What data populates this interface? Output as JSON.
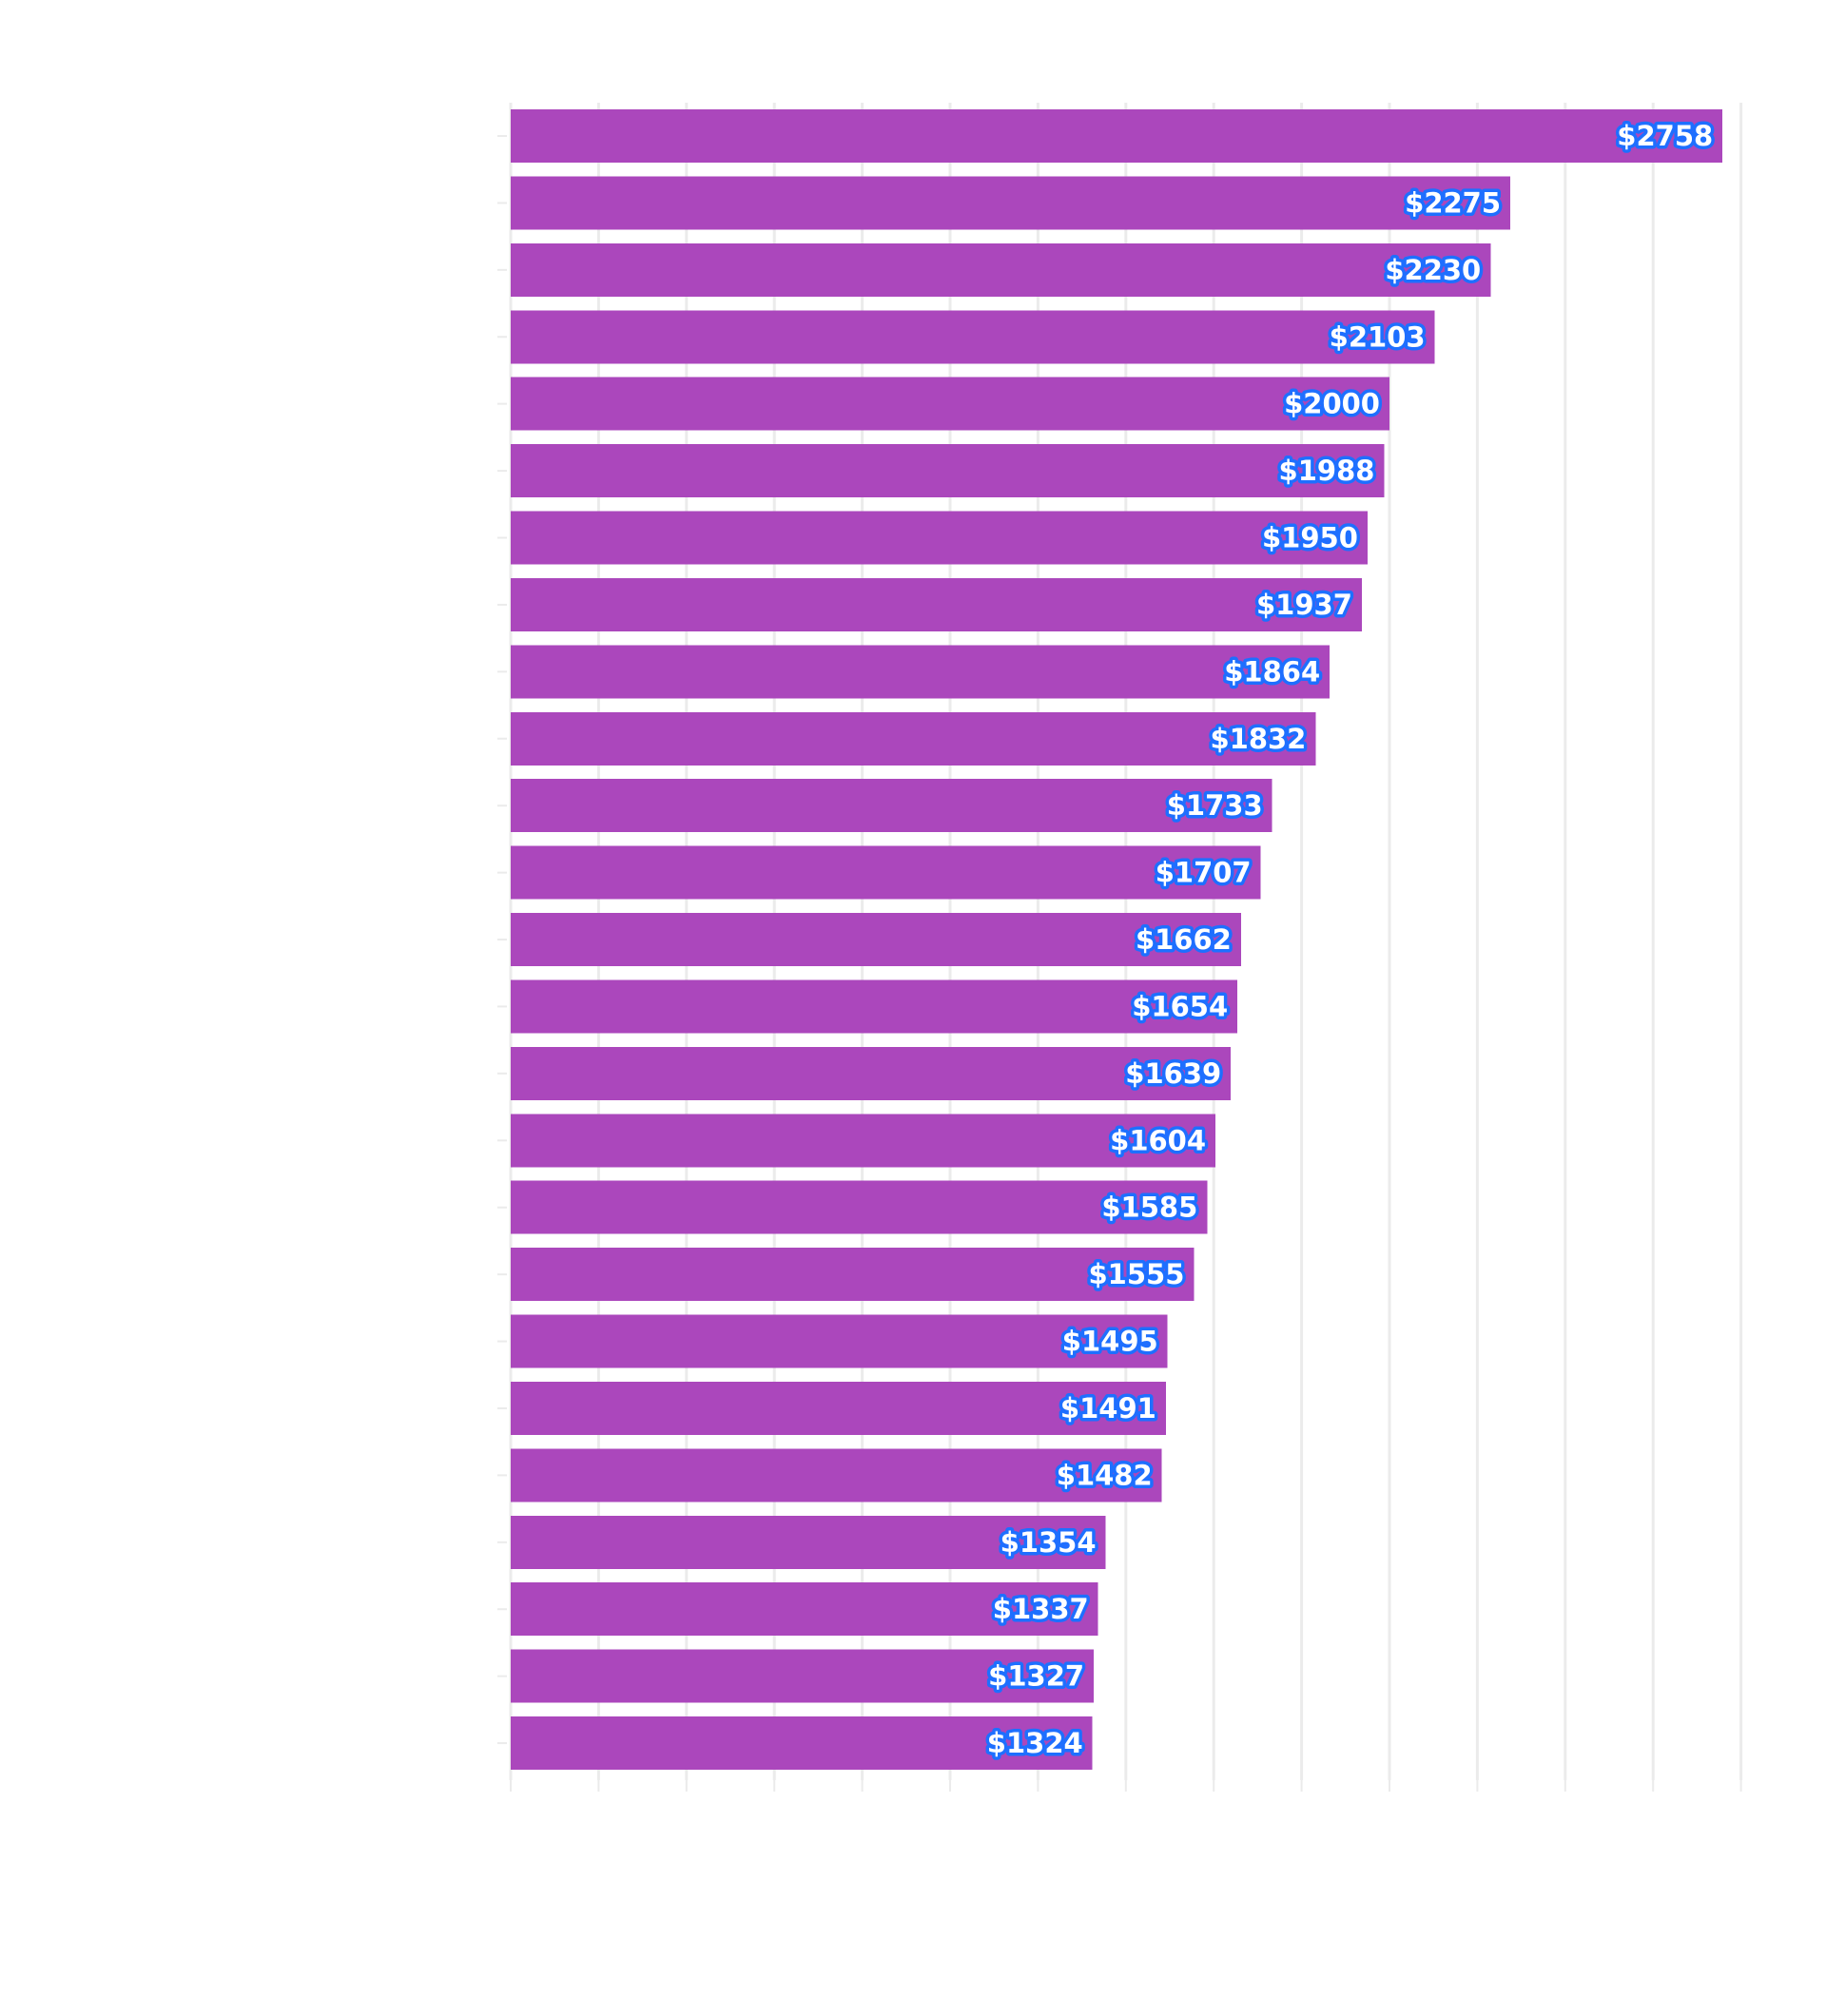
{
  "chart_data": {
    "type": "bar",
    "orientation": "horizontal",
    "title": "",
    "xlabel": "",
    "ylabel": "",
    "value_prefix": "$",
    "xlim": [
      0,
      2800
    ],
    "grid": true,
    "bar_color": "#ab47bc",
    "label_text_color": "#ffffff",
    "label_outline_color": "#1e6fff",
    "grid_color": "#ebebeb",
    "values": [
      2758,
      2275,
      2230,
      2103,
      2000,
      1988,
      1950,
      1937,
      1864,
      1832,
      1733,
      1707,
      1662,
      1654,
      1639,
      1604,
      1585,
      1555,
      1495,
      1491,
      1482,
      1354,
      1337,
      1327,
      1324
    ],
    "labels": [
      "$2758",
      "$2275",
      "$2230",
      "$2103",
      "$2000",
      "$1988",
      "$1950",
      "$1937",
      "$1864",
      "$1832",
      "$1733",
      "$1707",
      "$1662",
      "$1654",
      "$1639",
      "$1604",
      "$1585",
      "$1555",
      "$1495",
      "$1491",
      "$1482",
      "$1354",
      "$1337",
      "$1327",
      "$1324"
    ]
  }
}
